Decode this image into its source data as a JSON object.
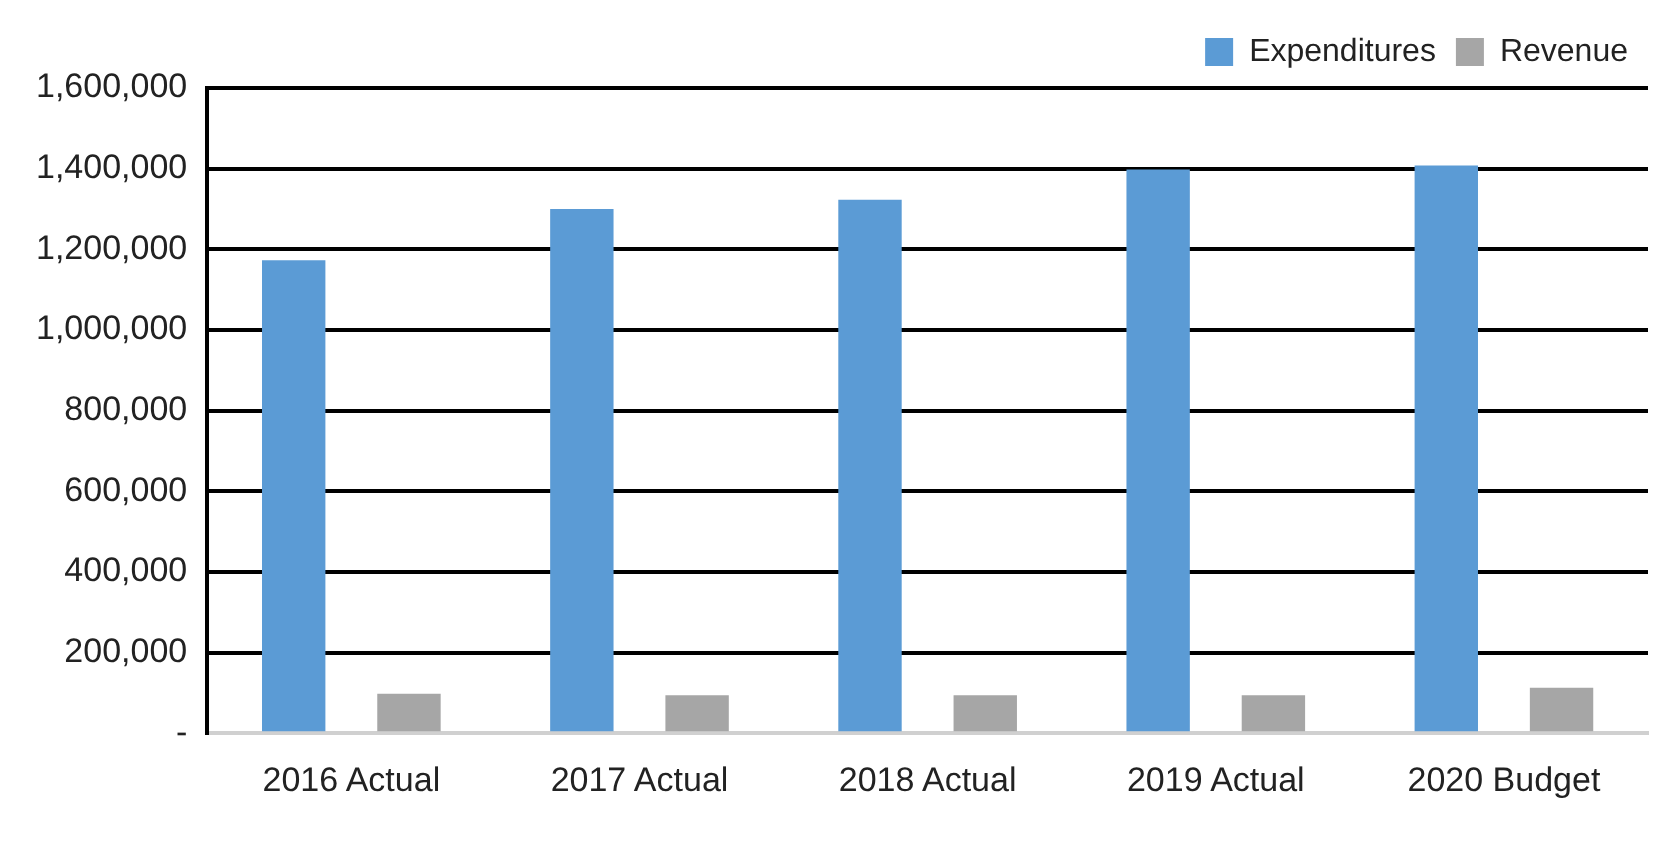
{
  "chart_data": {
    "type": "bar",
    "categories": [
      "2016 Actual",
      "2017 Actual",
      "2018 Actual",
      "2019 Actual",
      "2020 Budget"
    ],
    "series": [
      {
        "name": "Expenditures",
        "color": "#5b9bd5",
        "values": [
          1173000,
          1300000,
          1323000,
          1398000,
          1408000
        ]
      },
      {
        "name": "Revenue",
        "color": "#a6a6a6",
        "values": [
          98000,
          94000,
          94000,
          94000,
          113000
        ]
      }
    ],
    "ylim": [
      0,
      1600000
    ],
    "yticks": [
      {
        "value": 0,
        "label": "-"
      },
      {
        "value": 200000,
        "label": "200,000"
      },
      {
        "value": 400000,
        "label": "400,000"
      },
      {
        "value": 600000,
        "label": "600,000"
      },
      {
        "value": 800000,
        "label": "800,000"
      },
      {
        "value": 1000000,
        "label": "1,000,000"
      },
      {
        "value": 1200000,
        "label": "1,200,000"
      },
      {
        "value": 1400000,
        "label": "1,400,000"
      },
      {
        "value": 1600000,
        "label": "1,600,000"
      }
    ],
    "grid": "y",
    "legend": "top right"
  }
}
